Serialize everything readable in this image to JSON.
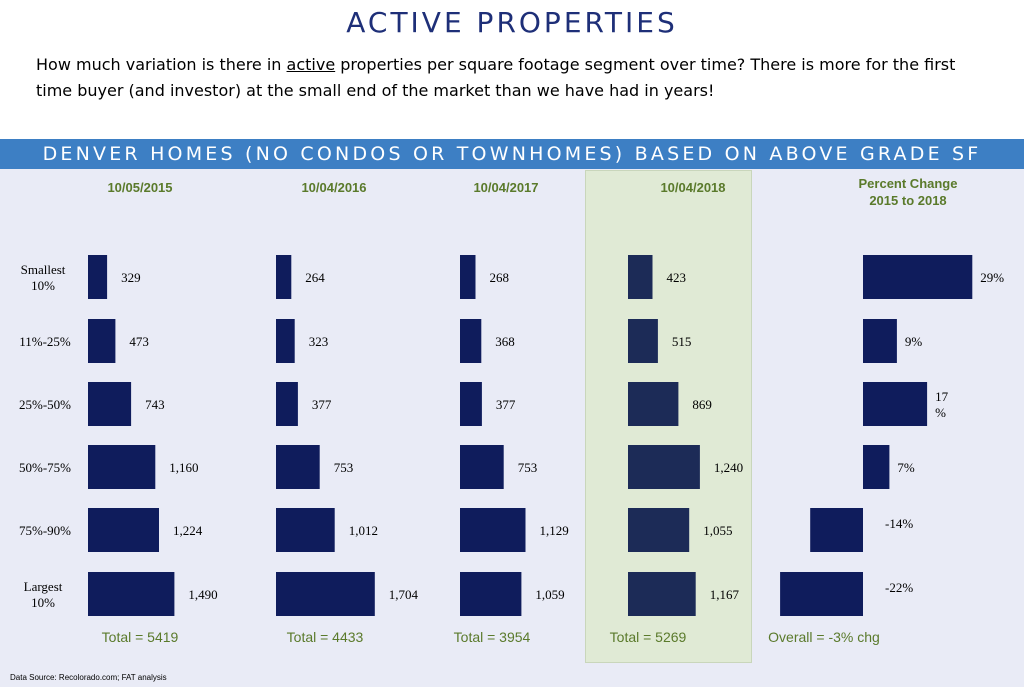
{
  "header": {
    "title": "ACTIVE PROPERTIES",
    "intro_before": "How much variation is there in ",
    "intro_emph": "active",
    "intro_after": " properties per square footage segment over time?  There is more for the first time buyer (and investor) at the small end of the market than we have had in years!"
  },
  "banner": {
    "text": "DENVER HOMES (NO CONDOS OR TOWNHOMES) BASED ON ABOVE GRADE SF"
  },
  "source": "Data Source: Recolorado.com; FAT analysis",
  "colors": {
    "bar": "#0f1c5c",
    "bar_highlight": "#1c2b57",
    "header_text": "#5a7a2b",
    "banner": "#3d7fc4",
    "highlight_bg": "#e0ead5"
  },
  "chart_data": {
    "type": "bar",
    "orientation": "horizontal",
    "categories": [
      "Smallest 10%",
      "11%-25%",
      "25%-50%",
      "50%-75%",
      "75%-90%",
      "Largest 10%"
    ],
    "series": [
      {
        "name": "10/05/2015",
        "values": [
          329,
          473,
          743,
          1160,
          1224,
          1490
        ],
        "labels": [
          "329",
          "473",
          "743",
          "1,160",
          "1,224",
          "1,490"
        ],
        "total_label": "Total = 5419"
      },
      {
        "name": "10/04/2016",
        "values": [
          264,
          323,
          377,
          753,
          1012,
          1704
        ],
        "labels": [
          "264",
          "323",
          "377",
          "753",
          "1,012",
          "1,704"
        ],
        "total_label": "Total = 4433"
      },
      {
        "name": "10/04/2017",
        "values": [
          268,
          368,
          377,
          753,
          1129,
          1059
        ],
        "labels": [
          "268",
          "368",
          "377",
          "753",
          "1,129",
          "1,059"
        ],
        "total_label": "Total = 3954"
      },
      {
        "name": "10/04/2018",
        "values": [
          423,
          515,
          869,
          1240,
          1055,
          1167
        ],
        "labels": [
          "423",
          "515",
          "869",
          "1,240",
          "1,055",
          "1,167"
        ],
        "total_label": "Total = 5269",
        "highlighted": true
      }
    ],
    "percent_change": {
      "title_lines": [
        "Percent Change",
        "2015 to 2018"
      ],
      "values": [
        29,
        9,
        17,
        7,
        -14,
        -22
      ],
      "labels": [
        "29%",
        "9%",
        "17 %",
        "7%",
        "-14%",
        "-22%"
      ],
      "overall_label": "Overall = -3% chg"
    }
  }
}
